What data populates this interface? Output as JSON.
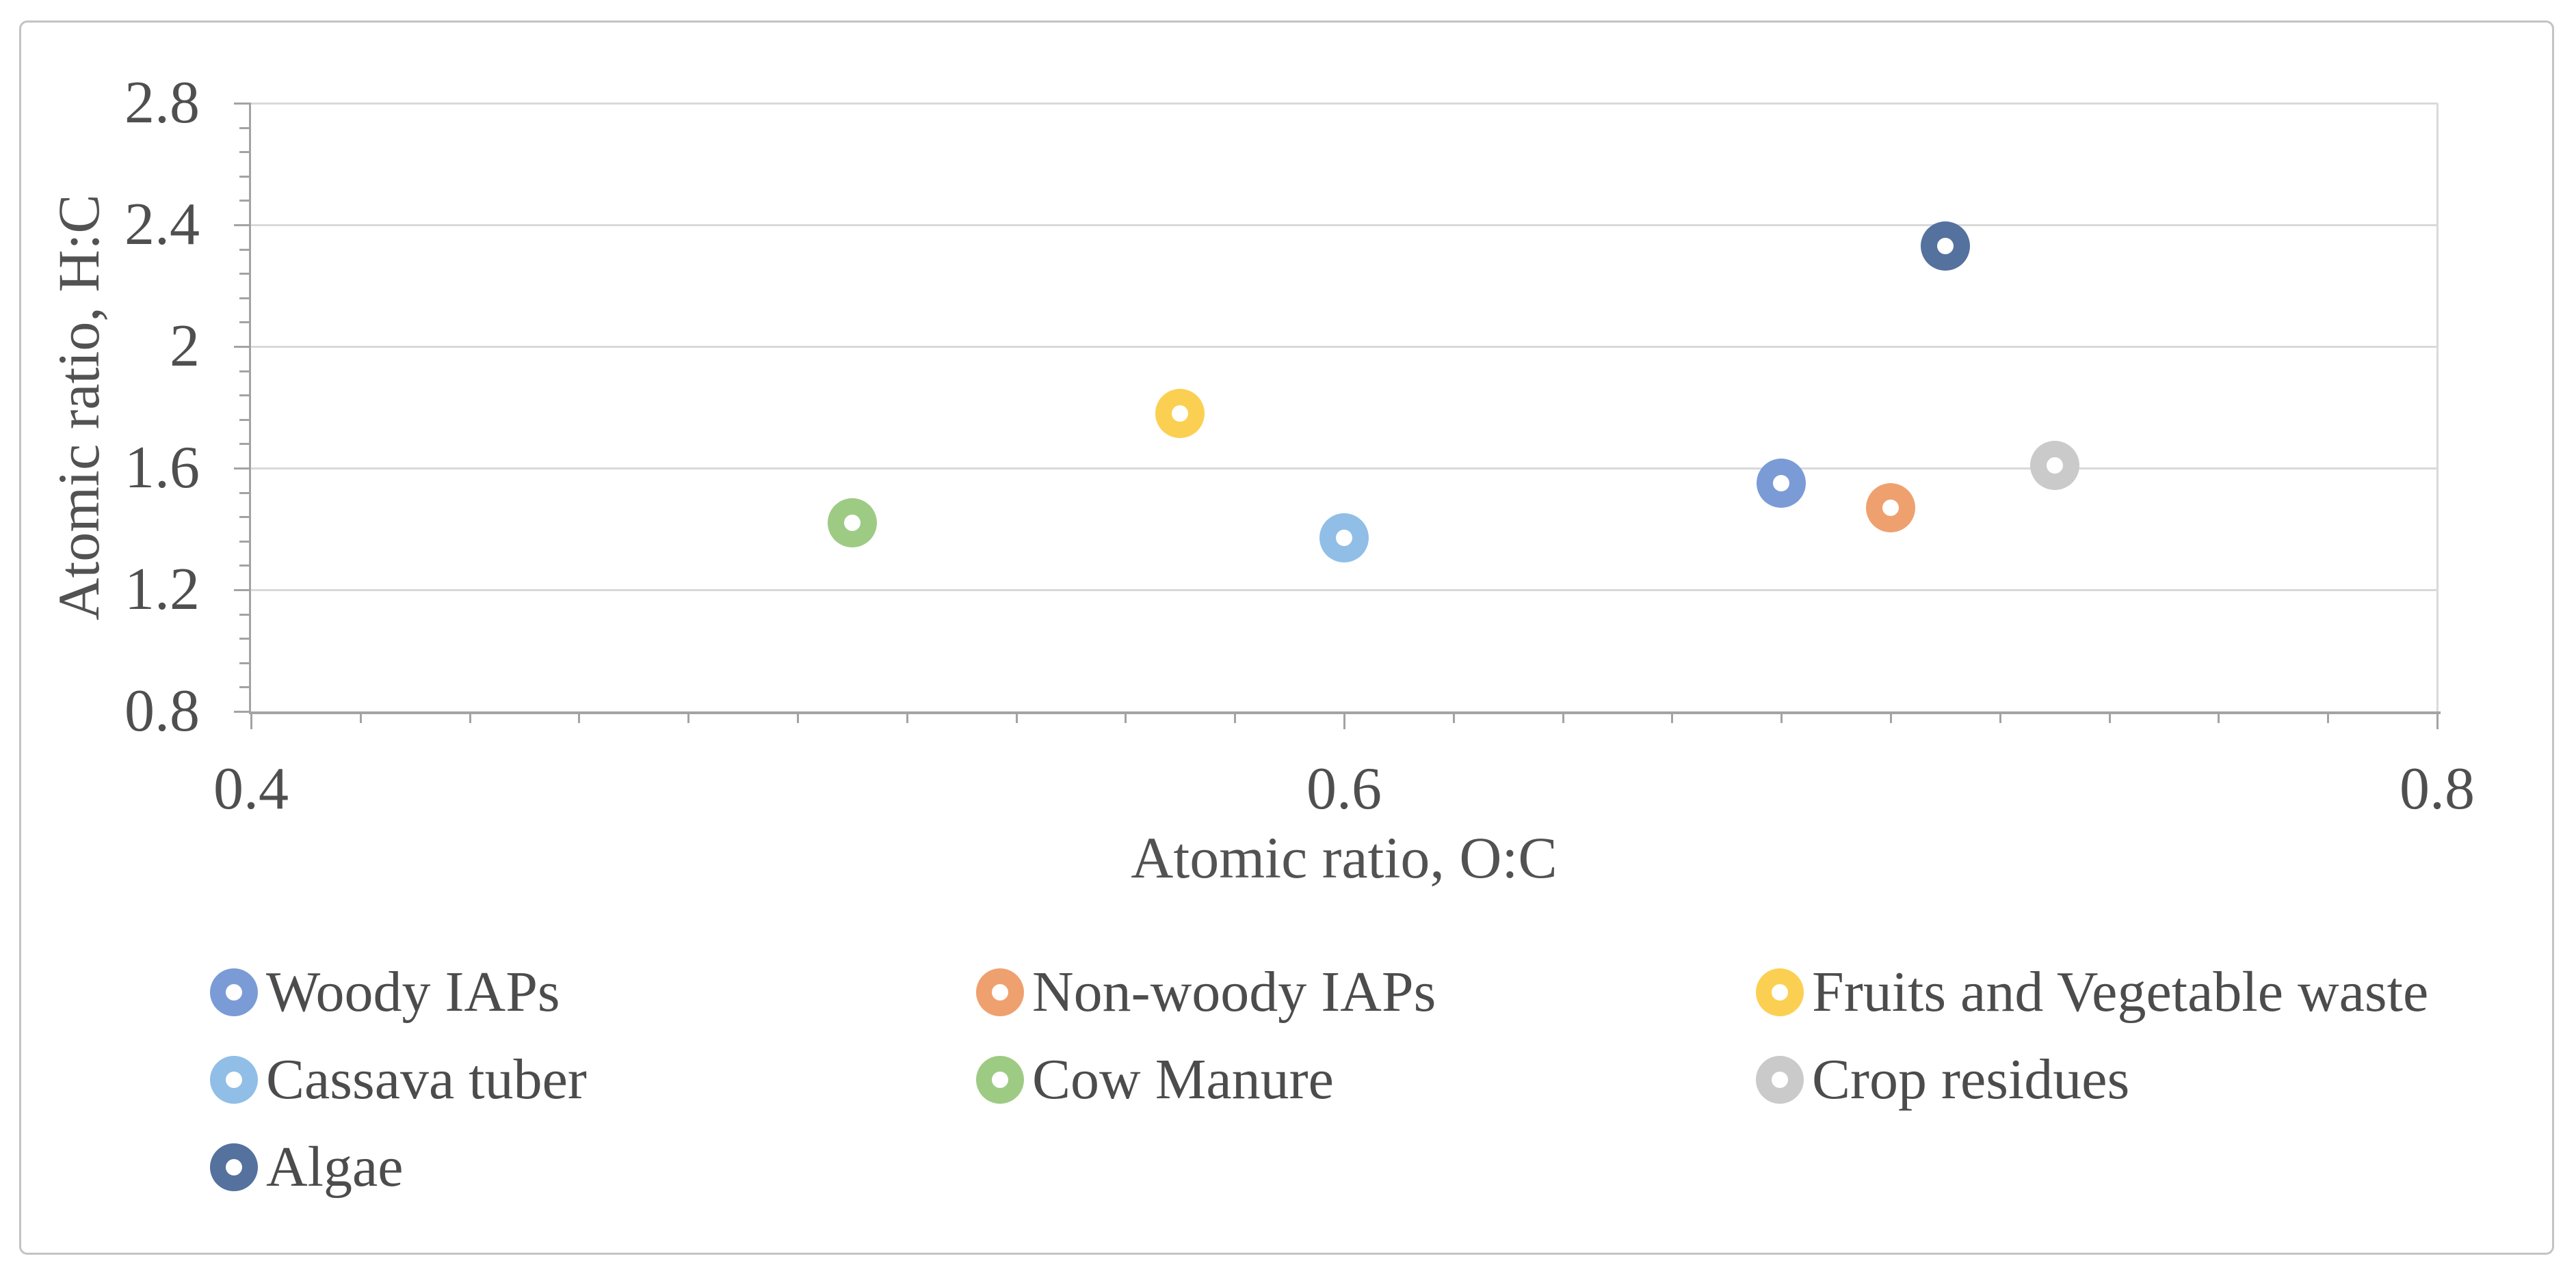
{
  "chart_data": {
    "type": "scatter",
    "title": "",
    "xlabel": "Atomic ratio, O:C",
    "ylabel": "Atomic ratio, H:C",
    "xlim": [
      0.4,
      0.8
    ],
    "ylim": [
      0.8,
      2.8
    ],
    "x_tick_labels": [
      "0.4",
      "0.6",
      "0.8"
    ],
    "x_major_ticks": [
      0.4,
      0.6,
      0.8
    ],
    "x_minor_unit": 0.02,
    "y_tick_labels": [
      "0.8",
      "1.2",
      "1.6",
      "2",
      "2.4",
      "2.8"
    ],
    "y_major_ticks": [
      0.8,
      1.2,
      1.6,
      2.0,
      2.4,
      2.8
    ],
    "y_minor_unit": 0.08,
    "grid": "horizontal-major-only",
    "legend_position": "bottom",
    "marker_style": "donut",
    "series": [
      {
        "name": "Woody IAPs",
        "x": 0.68,
        "y": 1.55,
        "color": "#7B9BD6"
      },
      {
        "name": "Non-woody IAPs",
        "x": 0.7,
        "y": 1.47,
        "color": "#EFA06F"
      },
      {
        "name": "Fruits and Vegetable waste",
        "x": 0.57,
        "y": 1.78,
        "color": "#FBD052"
      },
      {
        "name": "Cassava tuber",
        "x": 0.6,
        "y": 1.37,
        "color": "#90BEE7"
      },
      {
        "name": "Cow Manure",
        "x": 0.51,
        "y": 1.42,
        "color": "#9DCB84"
      },
      {
        "name": "Crop residues",
        "x": 0.73,
        "y": 1.61,
        "color": "#CACACA"
      },
      {
        "name": "Algae",
        "x": 0.71,
        "y": 2.33,
        "color": "#55719E"
      }
    ],
    "colors": {
      "gridline": "#d9d9d9",
      "axis_line": "#a3a3a3",
      "tick_label_text": "#4f4f4f",
      "axis_title_text": "#525252",
      "legend_text": "#4c4c4c",
      "figure_border": "#c3c3c3"
    }
  }
}
